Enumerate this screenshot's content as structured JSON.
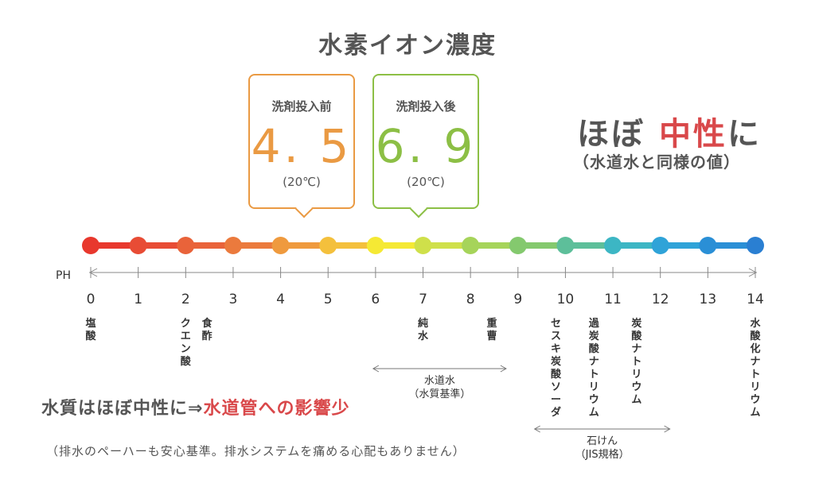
{
  "title": "水素イオン濃度",
  "before": {
    "label": "洗剤投入前",
    "value": "4. 5",
    "temp": "(20℃)",
    "ph": 4.5,
    "color": "#ea9a43"
  },
  "after": {
    "label": "洗剤投入後",
    "value": "6. 9",
    "temp": "(20℃)",
    "ph": 6.9,
    "color": "#8cbf45"
  },
  "headline": {
    "pre": "ほぼ ",
    "highlight": "中性",
    "post": "に"
  },
  "subline": "（水道水と同様の値）",
  "axis": {
    "unit_label": "PH",
    "min": 0,
    "max": 14,
    "ticks": [
      "0",
      "1",
      "2",
      "3",
      "4",
      "5",
      "6",
      "7",
      "8",
      "9",
      "10",
      "11",
      "12",
      "13",
      "14"
    ],
    "scale_colors": [
      "#e8382d",
      "#e84c35",
      "#e9633a",
      "#eb7a3d",
      "#ef9a3e",
      "#f4c03c",
      "#f5e934",
      "#cfe04a",
      "#a6d45a",
      "#84c96e",
      "#5dbf9a",
      "#3cb6c4",
      "#2fa3d8",
      "#2a8fd6",
      "#2a7fd2"
    ]
  },
  "substances": [
    {
      "text": "塩酸",
      "ph": 0
    },
    {
      "text": "クエン酸",
      "ph": 2
    },
    {
      "text": "食酢",
      "ph": 2.45
    },
    {
      "text": "純水",
      "ph": 7
    },
    {
      "text": "重曹",
      "ph": 8.45
    },
    {
      "text": "セスキ炭酸ソーダ",
      "ph": 9.8
    },
    {
      "text": "過炭酸ナトリウム",
      "ph": 10.6
    },
    {
      "text": "炭酸ナトリウム",
      "ph": 11.5
    },
    {
      "text": "水酸化ナトリウム",
      "ph": 14
    }
  ],
  "ranges": [
    {
      "line1": "水道水",
      "line2": "（水質基準）",
      "from": 5.95,
      "to": 8.75
    },
    {
      "line1": "石けん",
      "line2": "（JIS規格）",
      "from": 9.35,
      "to": 12.2
    }
  ],
  "quality": {
    "pre": "水質はほぼ中性に⇒",
    "highlight": "水道管への影響少"
  },
  "note": "（排水のペーハーも安心基準。排水システムを痛める心配もありません）"
}
